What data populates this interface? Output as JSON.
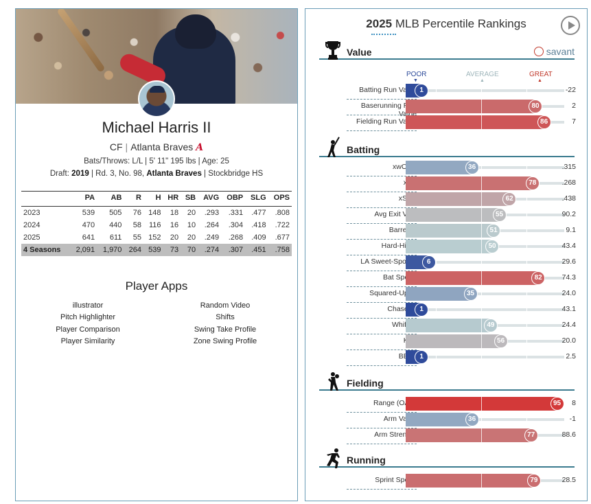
{
  "player": {
    "name": "Michael Harris II",
    "position": "CF",
    "team": "Atlanta Braves",
    "bats_throws": "Bats/Throws: L/L",
    "height_weight": "5' 11\" 195 lbs",
    "age": "Age: 25",
    "draft_label": "Draft:",
    "draft_year": "2019",
    "draft_pick": "Rd. 3, No. 98,",
    "draft_team": "Atlanta Braves",
    "draft_school": "Stockbridge HS",
    "team_logo_letter": "A"
  },
  "stats": {
    "headers": [
      "",
      "PA",
      "AB",
      "R",
      "H",
      "HR",
      "SB",
      "AVG",
      "OBP",
      "SLG",
      "OPS"
    ],
    "rows": [
      [
        "2023",
        "539",
        "505",
        "76",
        "148",
        "18",
        "20",
        ".293",
        ".331",
        ".477",
        ".808"
      ],
      [
        "2024",
        "470",
        "440",
        "58",
        "116",
        "16",
        "10",
        ".264",
        ".304",
        ".418",
        ".722"
      ],
      [
        "2025",
        "641",
        "611",
        "55",
        "152",
        "20",
        "20",
        ".249",
        ".268",
        ".409",
        ".677"
      ]
    ],
    "total": [
      "4 Seasons",
      "2,091",
      "1,970",
      "264",
      "539",
      "73",
      "70",
      ".274",
      ".307",
      ".451",
      ".758"
    ]
  },
  "apps": {
    "title": "Player Apps",
    "left": [
      "illustrator",
      "Pitch Highlighter",
      "Player Comparison",
      "Player Similarity"
    ],
    "right": [
      "Random Video",
      "Shifts",
      "Swing Take Profile",
      "Zone Swing Profile"
    ]
  },
  "rankings": {
    "year": "2025",
    "title_rest": " MLB Percentile Rankings",
    "savant": "savant",
    "scale": {
      "poor": "POOR",
      "average": "AVERAGE",
      "great": "GREAT"
    },
    "sections": [
      {
        "title": "Value",
        "icon": "trophy-icon",
        "metrics": [
          {
            "label": "Batting Run Value",
            "pct": 1,
            "value": "-22"
          },
          {
            "label": "Baserunning Run Value",
            "pct": 80,
            "value": "2"
          },
          {
            "label": "Fielding Run Value",
            "pct": 86,
            "value": "7"
          }
        ]
      },
      {
        "title": "Batting",
        "icon": "batter-icon",
        "metrics": [
          {
            "label": "xwOBA",
            "pct": 36,
            "value": ".315"
          },
          {
            "label": "xBA",
            "pct": 78,
            "value": ".268"
          },
          {
            "label": "xSLG",
            "pct": 62,
            "value": ".438"
          },
          {
            "label": "Avg Exit Velo",
            "pct": 55,
            "value": "90.2"
          },
          {
            "label": "Barrel %",
            "pct": 51,
            "value": "9.1"
          },
          {
            "label": "Hard-Hit %",
            "pct": 50,
            "value": "43.4"
          },
          {
            "label": "LA Sweet-Spot %",
            "pct": 6,
            "value": "29.6"
          },
          {
            "label": "Bat Speed",
            "pct": 82,
            "value": "74.3"
          },
          {
            "label": "Squared-Up %",
            "pct": 35,
            "value": "24.0"
          },
          {
            "label": "Chase %",
            "pct": 1,
            "value": "43.1"
          },
          {
            "label": "Whiff %",
            "pct": 49,
            "value": "24.4"
          },
          {
            "label": "K %",
            "pct": 56,
            "value": "20.0"
          },
          {
            "label": "BB %",
            "pct": 1,
            "value": "2.5"
          }
        ]
      },
      {
        "title": "Fielding",
        "icon": "fielder-icon",
        "metrics": [
          {
            "label": "Range (OAA)",
            "pct": 95,
            "value": "8"
          },
          {
            "label": "Arm Value",
            "pct": 36,
            "value": "-1"
          },
          {
            "label": "Arm Strength",
            "pct": 77,
            "value": "88.6"
          }
        ]
      },
      {
        "title": "Running",
        "icon": "runner-icon",
        "metrics": [
          {
            "label": "Sprint Speed",
            "pct": 79,
            "value": "28.5"
          }
        ]
      }
    ]
  }
}
